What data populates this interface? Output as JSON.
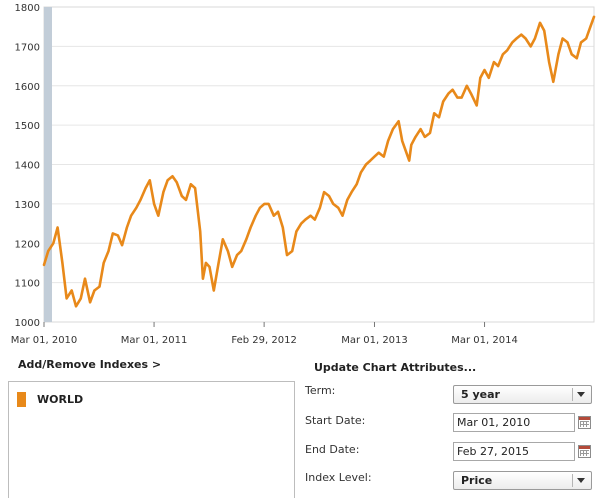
{
  "chart_data": {
    "type": "line",
    "series": [
      {
        "color": "#e8891a",
        "x": [
          "2010-03-01",
          "2010-03-15",
          "2010-04-01",
          "2010-04-15",
          "2010-05-01",
          "2010-05-15",
          "2010-06-01",
          "2010-06-15",
          "2010-07-01",
          "2010-07-15",
          "2010-08-01",
          "2010-08-15",
          "2010-09-01",
          "2010-09-15",
          "2010-10-01",
          "2010-10-15",
          "2010-11-01",
          "2010-11-15",
          "2010-12-01",
          "2010-12-15",
          "2011-01-01",
          "2011-01-15",
          "2011-02-01",
          "2011-02-15",
          "2011-03-01",
          "2011-03-15",
          "2011-04-01",
          "2011-04-15",
          "2011-05-01",
          "2011-05-15",
          "2011-06-01",
          "2011-06-15",
          "2011-07-01",
          "2011-07-15",
          "2011-08-01",
          "2011-08-10",
          "2011-08-20",
          "2011-09-01",
          "2011-09-15",
          "2011-10-01",
          "2011-10-15",
          "2011-11-01",
          "2011-11-15",
          "2011-12-01",
          "2011-12-15",
          "2012-01-01",
          "2012-01-15",
          "2012-02-01",
          "2012-02-15",
          "2012-03-01",
          "2012-03-15",
          "2012-04-01",
          "2012-04-15",
          "2012-05-01",
          "2012-05-15",
          "2012-06-01",
          "2012-06-15",
          "2012-07-01",
          "2012-07-15",
          "2012-08-01",
          "2012-08-15",
          "2012-09-01",
          "2012-09-15",
          "2012-10-01",
          "2012-10-15",
          "2012-11-01",
          "2012-11-15",
          "2012-12-01",
          "2012-12-15",
          "2013-01-01",
          "2013-01-15",
          "2013-02-01",
          "2013-02-15",
          "2013-03-01",
          "2013-03-15",
          "2013-04-01",
          "2013-04-15",
          "2013-05-01",
          "2013-05-20",
          "2013-06-01",
          "2013-06-24",
          "2013-07-01",
          "2013-07-15",
          "2013-08-01",
          "2013-08-15",
          "2013-09-01",
          "2013-09-15",
          "2013-10-01",
          "2013-10-15",
          "2013-11-01",
          "2013-11-15",
          "2013-12-01",
          "2013-12-15",
          "2014-01-01",
          "2014-01-15",
          "2014-02-03",
          "2014-02-15",
          "2014-03-01",
          "2014-03-15",
          "2014-04-01",
          "2014-04-15",
          "2014-05-01",
          "2014-05-15",
          "2014-06-01",
          "2014-06-15",
          "2014-07-01",
          "2014-07-15",
          "2014-08-01",
          "2014-08-15",
          "2014-09-01",
          "2014-09-15",
          "2014-10-01",
          "2014-10-15",
          "2014-11-01",
          "2014-11-15",
          "2014-12-01",
          "2014-12-15",
          "2015-01-01",
          "2015-01-15",
          "2015-02-01",
          "2015-02-15",
          "2015-02-27"
        ],
        "y": [
          1145,
          1180,
          1200,
          1240,
          1150,
          1060,
          1080,
          1040,
          1060,
          1110,
          1050,
          1080,
          1090,
          1150,
          1180,
          1225,
          1220,
          1195,
          1240,
          1270,
          1290,
          1310,
          1340,
          1360,
          1300,
          1270,
          1330,
          1360,
          1370,
          1355,
          1320,
          1310,
          1350,
          1340,
          1230,
          1110,
          1150,
          1140,
          1080,
          1150,
          1210,
          1180,
          1140,
          1170,
          1180,
          1210,
          1240,
          1270,
          1290,
          1300,
          1300,
          1270,
          1280,
          1240,
          1170,
          1180,
          1230,
          1250,
          1260,
          1270,
          1260,
          1290,
          1330,
          1320,
          1300,
          1290,
          1270,
          1310,
          1330,
          1350,
          1380,
          1400,
          1410,
          1420,
          1430,
          1420,
          1460,
          1490,
          1510,
          1460,
          1410,
          1450,
          1470,
          1490,
          1470,
          1480,
          1530,
          1520,
          1560,
          1580,
          1590,
          1570,
          1570,
          1600,
          1580,
          1550,
          1620,
          1640,
          1620,
          1660,
          1650,
          1680,
          1690,
          1710,
          1720,
          1730,
          1720,
          1700,
          1720,
          1760,
          1740,
          1660,
          1610,
          1680,
          1720,
          1710,
          1680,
          1670,
          1710,
          1720,
          1750,
          1775
        ]
      }
    ],
    "y_ticks": [
      "1800",
      "1700",
      "1600",
      "1500",
      "1400",
      "1300",
      "1200",
      "1100",
      "1000"
    ],
    "x_ticks": [
      "Mar 01, 2010",
      "Mar 01, 2011",
      "Feb 29, 2012",
      "Mar 01, 2013",
      "Mar 01, 2014"
    ],
    "x_tick_dates": [
      "2010-03-01",
      "2011-03-01",
      "2012-02-29",
      "2013-03-01",
      "2014-03-01"
    ],
    "ylim": [
      1000,
      1800
    ],
    "xlim": [
      "2010-03-01",
      "2015-02-27"
    ],
    "grid": true,
    "legend": "none"
  },
  "panel": {
    "add_remove_label": "Add/Remove Indexes >",
    "update_label": "Update Chart Attributes...",
    "indexes": [
      {
        "label": "WORLD",
        "color": "#e8891a"
      }
    ],
    "term_label": "Term:",
    "term_value": "5 year",
    "start_label": "Start Date:",
    "start_value": "Mar 01, 2010",
    "end_label": "End Date:",
    "end_value": "Feb 27, 2015",
    "level_label": "Index Level:",
    "level_value": "Price"
  }
}
